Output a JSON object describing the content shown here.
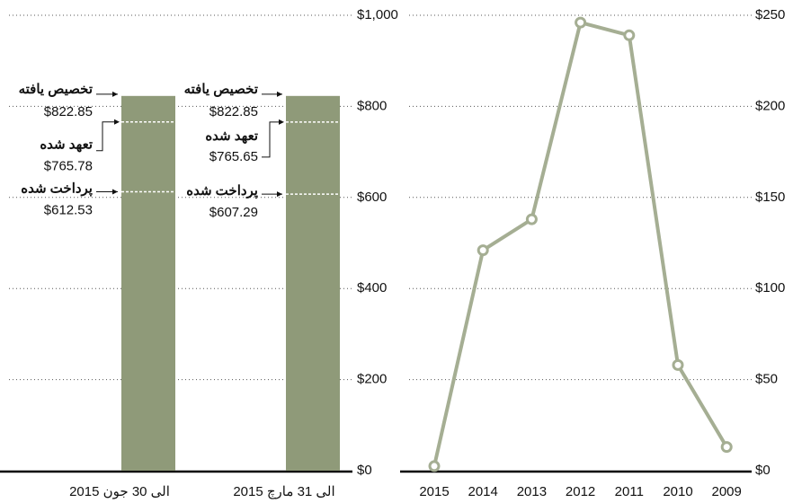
{
  "chart_data": [
    {
      "type": "bar",
      "categories": [
        "الی 30 جون 2015",
        "الی 31 مارچ 2015"
      ],
      "color": "#8f9a79",
      "series": [
        {
          "name": "تخصیص یافته",
          "values": [
            822.85,
            822.85
          ],
          "value_labels": [
            "$822.85",
            "$822.85"
          ]
        },
        {
          "name": "تعهد شده",
          "values": [
            765.78,
            765.65
          ],
          "value_labels": [
            "$765.78",
            "$765.65"
          ]
        },
        {
          "name": "پرداخت شده",
          "values": [
            612.53,
            607.29
          ],
          "value_labels": [
            "$612.53",
            "$607.29"
          ]
        }
      ],
      "ylim": [
        0,
        1000
      ],
      "yticks": [
        {
          "value": 0,
          "label": "$0"
        },
        {
          "value": 200,
          "label": "$200"
        },
        {
          "value": 400,
          "label": "$400"
        },
        {
          "value": 600,
          "label": "$600"
        },
        {
          "value": 800,
          "label": "$800"
        },
        {
          "value": 1000,
          "label": "$1,000"
        }
      ],
      "grid": true
    },
    {
      "type": "line",
      "categories": [
        "2015",
        "2014",
        "2013",
        "2012",
        "2011",
        "2010",
        "2009"
      ],
      "color": "#a5ae93",
      "values": [
        2.5,
        121,
        138,
        246,
        239,
        58,
        13
      ],
      "ylim": [
        0,
        250
      ],
      "yticks": [
        {
          "value": 0,
          "label": "$0"
        },
        {
          "value": 50,
          "label": "$50"
        },
        {
          "value": 100,
          "label": "$100"
        },
        {
          "value": 150,
          "label": "$150"
        },
        {
          "value": 200,
          "label": "$200"
        },
        {
          "value": 250,
          "label": "$250"
        }
      ],
      "grid": true
    }
  ]
}
